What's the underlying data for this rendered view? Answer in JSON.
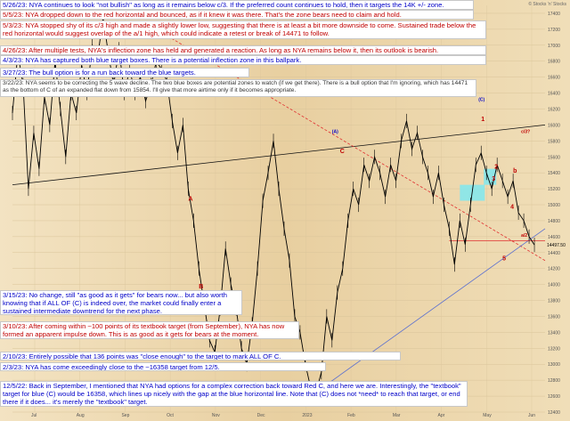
{
  "chart_data": {
    "type": "line",
    "title": "",
    "xlabel": "",
    "ylabel": "",
    "x_tick_labels": [
      "Jul",
      "Aug",
      "Sep",
      "Oct",
      "Nov",
      "Dec",
      "2023",
      "Feb",
      "Mar",
      "Apr",
      "May",
      "Jun"
    ],
    "y_tick_labels": [
      "17400",
      "17200",
      "17000",
      "16800",
      "16600",
      "16400",
      "16200",
      "16000",
      "15800",
      "15600",
      "15400",
      "15200",
      "15000",
      "14800",
      "14600",
      "14400",
      "14200",
      "14000",
      "13800",
      "13600",
      "13400",
      "13200",
      "13000",
      "12800",
      "12600",
      "12400"
    ],
    "ylim": [
      12400,
      17500
    ],
    "last_price": "14497.50",
    "wave_labels": [
      {
        "text": "A",
        "color": "#c00000"
      },
      {
        "text": "B",
        "color": "#c00000"
      },
      {
        "text": "C",
        "color": "#c00000"
      },
      {
        "text": "(A)",
        "color": "#0000c8"
      },
      {
        "text": "(B)",
        "color": "#0000c8"
      },
      {
        "text": "(C)",
        "color": "#0000c8"
      },
      {
        "text": "1",
        "color": "#c00000"
      },
      {
        "text": "2",
        "color": "#c00000"
      },
      {
        "text": "3",
        "color": "#c00000"
      },
      {
        "text": "4",
        "color": "#c00000"
      },
      {
        "text": "5",
        "color": "#c00000"
      },
      {
        "text": "a/2",
        "color": "#c00000"
      },
      {
        "text": "b",
        "color": "#c00000"
      },
      {
        "text": "c/3?",
        "color": "#c00000"
      }
    ],
    "series": [
      {
        "name": "",
        "color": "#000000",
        "values": [
          [
            0.0,
            16150
          ],
          [
            0.01,
            16900
          ],
          [
            0.02,
            16500
          ],
          [
            0.03,
            15200
          ],
          [
            0.04,
            15900
          ],
          [
            0.05,
            15450
          ],
          [
            0.06,
            16350
          ],
          [
            0.07,
            16000
          ],
          [
            0.08,
            16800
          ],
          [
            0.09,
            16200
          ],
          [
            0.1,
            15600
          ],
          [
            0.11,
            16400
          ],
          [
            0.12,
            16150
          ],
          [
            0.13,
            16750
          ],
          [
            0.14,
            16400
          ],
          [
            0.15,
            17000
          ],
          [
            0.16,
            16850
          ],
          [
            0.17,
            17350
          ],
          [
            0.18,
            16900
          ],
          [
            0.19,
            16500
          ],
          [
            0.2,
            16950
          ],
          [
            0.21,
            16400
          ],
          [
            0.22,
            16700
          ],
          [
            0.23,
            16400
          ],
          [
            0.24,
            16600
          ],
          [
            0.25,
            16300
          ],
          [
            0.26,
            16500
          ],
          [
            0.27,
            16800
          ],
          [
            0.28,
            16700
          ],
          [
            0.29,
            16550
          ],
          [
            0.3,
            16050
          ],
          [
            0.31,
            15650
          ],
          [
            0.32,
            16000
          ],
          [
            0.33,
            15200
          ],
          [
            0.34,
            14800
          ],
          [
            0.35,
            14200
          ],
          [
            0.36,
            13750
          ],
          [
            0.37,
            13300
          ],
          [
            0.38,
            13150
          ],
          [
            0.39,
            13700
          ],
          [
            0.4,
            14450
          ],
          [
            0.41,
            14000
          ],
          [
            0.42,
            13700
          ],
          [
            0.43,
            13200
          ],
          [
            0.44,
            13000
          ],
          [
            0.45,
            13500
          ],
          [
            0.46,
            14200
          ],
          [
            0.47,
            15050
          ],
          [
            0.48,
            15400
          ],
          [
            0.49,
            15800
          ],
          [
            0.5,
            15200
          ],
          [
            0.51,
            14700
          ],
          [
            0.52,
            14300
          ],
          [
            0.53,
            13600
          ],
          [
            0.54,
            13400
          ],
          [
            0.55,
            13000
          ],
          [
            0.56,
            12700
          ],
          [
            0.57,
            12650
          ],
          [
            0.58,
            12900
          ],
          [
            0.59,
            13600
          ],
          [
            0.6,
            13300
          ],
          [
            0.61,
            13900
          ],
          [
            0.62,
            14200
          ],
          [
            0.63,
            14800
          ],
          [
            0.64,
            15200
          ],
          [
            0.65,
            15000
          ],
          [
            0.66,
            15500
          ],
          [
            0.67,
            15300
          ],
          [
            0.68,
            15600
          ],
          [
            0.69,
            15400
          ],
          [
            0.7,
            15100
          ],
          [
            0.71,
            15500
          ],
          [
            0.72,
            15300
          ],
          [
            0.73,
            15800
          ],
          [
            0.74,
            16050
          ],
          [
            0.75,
            15700
          ],
          [
            0.76,
            15900
          ],
          [
            0.77,
            15600
          ],
          [
            0.78,
            15400
          ],
          [
            0.79,
            15100
          ],
          [
            0.8,
            15400
          ],
          [
            0.81,
            15000
          ],
          [
            0.82,
            14700
          ],
          [
            0.83,
            14250
          ],
          [
            0.84,
            14800
          ],
          [
            0.85,
            14500
          ],
          [
            0.86,
            15000
          ],
          [
            0.87,
            15500
          ],
          [
            0.88,
            15650
          ],
          [
            0.89,
            15400
          ],
          [
            0.9,
            15200
          ],
          [
            0.91,
            15500
          ],
          [
            0.92,
            15300
          ],
          [
            0.93,
            15100
          ],
          [
            0.94,
            15300
          ],
          [
            0.95,
            14900
          ],
          [
            0.96,
            14800
          ],
          [
            0.97,
            14600
          ],
          [
            0.98,
            14497
          ]
        ]
      }
    ]
  },
  "watermark": "© Stocks ’n’ Stocks",
  "annotations": [
    {
      "id": "a1",
      "date": "5/26/23:",
      "text": "NYA continues to look \"not bullish\" as long as it remains below c/3.  If the preferred count continues to hold, then it targets the 14K +/- zone.",
      "color": "#0000c8"
    },
    {
      "id": "a2",
      "date": "5/5/23:",
      "text": "NYA dropped down to the red horizontal and bounced, as if it knew it was there.  That's the zone bears need to claim and hold.",
      "color": "#c00000"
    },
    {
      "id": "a3",
      "date": "5/3/23:",
      "text": "NYA stopped shy of its c/3 high and made a slightly lower low, suggesting that there is at least a bit more downside to come. Sustained trade below the red horizontal would suggest overlap of the a/1 high, which could indicate a retest or break of 14471 to follow.",
      "color": "#c00000"
    },
    {
      "id": "a4",
      "date": "4/26/23:",
      "text": "After multiple tests, NYA's inflection zone has held and generated a reaction.  As long as NYA remains below it, then its outlook is bearish.",
      "color": "#c00000"
    },
    {
      "id": "a5",
      "date": "4/3/23:",
      "text": "NYA has captured both blue target boxes.  There is a potential inflection zone in this ballpark.",
      "color": "#0000c8"
    },
    {
      "id": "a6",
      "date": "3/27/23:",
      "text": "The bull option is for a run back toward the blue targets.",
      "color": "#0000c8"
    },
    {
      "id": "a7",
      "date": "3/22/23:",
      "text": "NYA seems to be correcting the 5 wave decline. The two blue boxes are potential zones to watch (if we get there).  There is a bull option that I'm ignoring, which has 14471 as the bottom of C of an expanded flat down from 15854.  I'll give that more airtime only if it becomes appropriate.",
      "color": "#333333"
    },
    {
      "id": "a8",
      "date": "3/15/23:",
      "text": "No change, still \"as good as it gets\" for bears now... but also worth knowing that if ALL OF (C) is indeed over, the market could finally enter a sustained intermediate downtrend for the next phase.",
      "color": "#0000c8"
    },
    {
      "id": "a9",
      "date": "3/10/23:",
      "text": "After coming within ~100 points of its textbook target (from September), NYA has now formed an apparent impulse down.  This is as good as it gets for bears at the moment.",
      "color": "#c00000"
    },
    {
      "id": "a10",
      "date": "2/10/23:",
      "text": "Entirely possible that 136 points was \"close enough\" to the target to mark ALL OF C.",
      "color": "#0000c8"
    },
    {
      "id": "a11",
      "date": "2/3/23:",
      "text": "NYA has come exceedingly close to the ~16358 target from 12/5.",
      "color": "#0000c8"
    },
    {
      "id": "a12",
      "date": "12/5/22:",
      "text": "Back in September, I mentioned that NYA had options for a complex correction back toward Red C, and here we are. Interestingly, the \"textbook\" target for blue (C) would be 16358, which lines up nicely with the gap at the blue horizontal line. Note that (C) does not *need* to reach that target, or end there if it does... it's merely the \"textbook\" target.",
      "color": "#0000c8"
    }
  ]
}
